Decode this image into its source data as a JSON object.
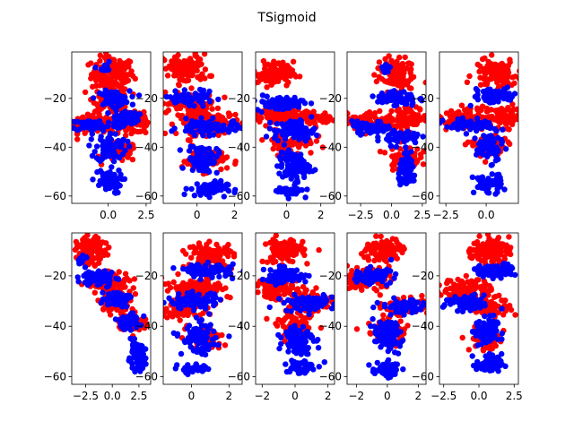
{
  "chart_data": {
    "type": "scatter",
    "title": "TSigmoid",
    "layout": "2x5 grid",
    "series_colors": [
      "#ff0000",
      "#0000ff"
    ],
    "panels": [
      {
        "xticks": [
          "0.0",
          "2.5"
        ],
        "xlim": [
          -2.4,
          2.8
        ],
        "yticks": [
          "-20",
          "-40",
          "-60"
        ],
        "ylim": [
          -63,
          -1
        ],
        "red_blobs": [
          [
            0.3,
            -10,
            1.4,
            7,
            130
          ],
          [
            -0.8,
            -30,
            2.4,
            4,
            150
          ],
          [
            1.5,
            -30,
            1.8,
            4,
            110
          ],
          [
            0.8,
            -42,
            1.1,
            4,
            60
          ],
          [
            0.2,
            -20,
            1.2,
            5,
            60
          ]
        ],
        "blue_blobs": [
          [
            0.3,
            -20,
            1.1,
            3,
            80
          ],
          [
            -0.9,
            -31,
            1.6,
            2.5,
            70
          ],
          [
            0.2,
            -40,
            1.0,
            6,
            70
          ],
          [
            -0.1,
            -54,
            1.0,
            5,
            60
          ],
          [
            1.2,
            -28,
            0.8,
            3,
            40
          ],
          [
            -0.3,
            -8,
            0.5,
            3,
            10
          ]
        ]
      },
      {
        "xticks": [
          "0",
          "2"
        ],
        "xlim": [
          -1.8,
          2.4
        ],
        "yticks": [
          "-20",
          "-40",
          "-60"
        ],
        "ylim": [
          -63,
          -1
        ],
        "red_blobs": [
          [
            -0.6,
            -8,
            1.2,
            6,
            110
          ],
          [
            -0.5,
            -22,
            1.5,
            4,
            90
          ],
          [
            0.7,
            -30,
            1.7,
            5,
            120
          ],
          [
            0.4,
            -45,
            1.2,
            5,
            60
          ]
        ],
        "blue_blobs": [
          [
            -0.4,
            -20,
            1.3,
            2.5,
            80
          ],
          [
            0.6,
            -32,
            1.6,
            3,
            90
          ],
          [
            0.3,
            -45,
            0.8,
            6,
            80
          ],
          [
            0.6,
            -57,
            1.0,
            3,
            60
          ]
        ]
      },
      {
        "xticks": [
          "0",
          "2"
        ],
        "xlim": [
          -1.8,
          2.8
        ],
        "yticks": [
          "-20",
          "-40",
          "-60"
        ],
        "ylim": [
          -63,
          -1
        ],
        "red_blobs": [
          [
            -0.8,
            -10,
            1.2,
            5,
            110
          ],
          [
            -0.3,
            -27,
            1.6,
            5,
            100
          ],
          [
            1.5,
            -28,
            1.4,
            3,
            90
          ],
          [
            0.2,
            -38,
            1.4,
            5,
            60
          ]
        ],
        "blue_blobs": [
          [
            -0.4,
            -22,
            1.4,
            3,
            80
          ],
          [
            0.5,
            -33,
            1.2,
            4,
            90
          ],
          [
            0.4,
            -48,
            0.9,
            6,
            90
          ],
          [
            0.2,
            -58,
            0.8,
            2,
            40
          ]
        ]
      },
      {
        "xticks": [
          "-2.5",
          "0.0",
          "2.5"
        ],
        "xlim": [
          -3.6,
          2.8
        ],
        "yticks": [
          "-20",
          "-40",
          "-60"
        ],
        "ylim": [
          -63,
          -1
        ],
        "red_blobs": [
          [
            0.3,
            -10,
            1.5,
            7,
            120
          ],
          [
            -1.6,
            -30,
            2.0,
            4,
            110
          ],
          [
            1.5,
            -28,
            1.5,
            4,
            90
          ],
          [
            1.0,
            -44,
            1.3,
            5,
            70
          ]
        ],
        "blue_blobs": [
          [
            0.4,
            -20,
            1.6,
            3,
            80
          ],
          [
            -1.6,
            -32,
            1.6,
            2.5,
            70
          ],
          [
            0.9,
            -36,
            1.4,
            3,
            60
          ],
          [
            1.3,
            -50,
            0.7,
            6,
            80
          ],
          [
            -0.4,
            -8,
            0.4,
            2,
            10
          ]
        ]
      },
      {
        "xticks": [
          "-2.5",
          "0.0"
        ],
        "xlim": [
          -2.9,
          2.0
        ],
        "yticks": [
          "-20",
          "-40",
          "-60"
        ],
        "ylim": [
          -63,
          -1
        ],
        "red_blobs": [
          [
            0.6,
            -10,
            1.3,
            6,
            110
          ],
          [
            -1.0,
            -28,
            2.0,
            4,
            110
          ],
          [
            1.1,
            -28,
            1.3,
            4,
            70
          ],
          [
            0.1,
            -40,
            1.2,
            5,
            60
          ]
        ],
        "blue_blobs": [
          [
            0.6,
            -19,
            1.4,
            3,
            80
          ],
          [
            -0.9,
            -31,
            1.6,
            2.5,
            70
          ],
          [
            0.2,
            -40,
            0.8,
            6,
            80
          ],
          [
            0.1,
            -55,
            0.9,
            4,
            60
          ]
        ]
      },
      {
        "xticks": [
          "-2.5",
          "0.0",
          "2.5"
        ],
        "xlim": [
          -3.8,
          3.6
        ],
        "yticks": [
          "-20",
          "-40",
          "-60"
        ],
        "ylim": [
          -63,
          -3
        ],
        "red_blobs": [
          [
            -2.0,
            -10,
            1.3,
            5,
            110
          ],
          [
            -0.3,
            -22,
            2.0,
            4,
            110
          ],
          [
            0.3,
            -30,
            1.5,
            4,
            80
          ],
          [
            1.8,
            -38,
            1.3,
            4,
            70
          ]
        ],
        "blue_blobs": [
          [
            -1.3,
            -21,
            1.6,
            3,
            80
          ],
          [
            0.3,
            -29,
            1.3,
            3,
            70
          ],
          [
            1.5,
            -38,
            1.2,
            3,
            70
          ],
          [
            2.3,
            -52,
            0.8,
            5,
            80
          ],
          [
            -2.8,
            -14,
            0.5,
            2,
            15
          ]
        ]
      },
      {
        "xticks": [
          "0",
          "2"
        ],
        "xlim": [
          -1.5,
          2.7
        ],
        "yticks": [
          "-20",
          "-40",
          "-60"
        ],
        "ylim": [
          -63,
          -3
        ],
        "red_blobs": [
          [
            1.0,
            -12,
            1.2,
            5,
            110
          ],
          [
            0.3,
            -25,
            1.8,
            4,
            100
          ],
          [
            -0.3,
            -33,
            1.5,
            4,
            90
          ],
          [
            0.7,
            -45,
            1.0,
            5,
            60
          ]
        ],
        "blue_blobs": [
          [
            1.0,
            -18,
            1.3,
            2.5,
            80
          ],
          [
            0.1,
            -30,
            1.4,
            3,
            80
          ],
          [
            0.4,
            -45,
            0.9,
            6,
            90
          ],
          [
            0.2,
            -57,
            0.9,
            2,
            40
          ]
        ]
      },
      {
        "xticks": [
          "-2",
          "0",
          "2"
        ],
        "xlim": [
          -2.4,
          2.4
        ],
        "yticks": [
          "-20",
          "-40",
          "-60"
        ],
        "ylim": [
          -63,
          -3
        ],
        "red_blobs": [
          [
            -0.7,
            -10,
            1.2,
            5,
            100
          ],
          [
            -1.0,
            -25,
            1.5,
            4,
            100
          ],
          [
            1.0,
            -30,
            1.4,
            4,
            90
          ],
          [
            0.1,
            -40,
            1.2,
            5,
            60
          ]
        ],
        "blue_blobs": [
          [
            -0.6,
            -20,
            1.4,
            3,
            80
          ],
          [
            0.8,
            -31,
            1.5,
            3,
            80
          ],
          [
            0.2,
            -45,
            0.9,
            6,
            90
          ],
          [
            0.3,
            -56,
            0.9,
            3,
            50
          ]
        ]
      },
      {
        "xticks": [
          "-2",
          "0",
          "2"
        ],
        "xlim": [
          -2.6,
          2.5
        ],
        "yticks": [
          "-20",
          "-40",
          "-60"
        ],
        "ylim": [
          -63,
          -3
        ],
        "red_blobs": [
          [
            -0.3,
            -10,
            1.3,
            5,
            100
          ],
          [
            -1.5,
            -22,
            1.4,
            4,
            100
          ],
          [
            1.2,
            -32,
            1.4,
            3,
            90
          ],
          [
            0.0,
            -42,
            1.3,
            5,
            70
          ]
        ],
        "blue_blobs": [
          [
            -1.0,
            -20,
            1.3,
            3,
            80
          ],
          [
            1.2,
            -32,
            1.5,
            2.5,
            90
          ],
          [
            0.0,
            -44,
            0.9,
            6,
            90
          ],
          [
            -0.1,
            -57,
            0.9,
            3,
            50
          ]
        ]
      },
      {
        "xticks": [
          "-2.5",
          "0.0",
          "2.5"
        ],
        "xlim": [
          -2.8,
          2.8
        ],
        "yticks": [
          "-20",
          "-40",
          "-60"
        ],
        "ylim": [
          -63,
          -3
        ],
        "red_blobs": [
          [
            0.8,
            -10,
            1.3,
            5,
            110
          ],
          [
            -0.8,
            -25,
            1.8,
            4,
            100
          ],
          [
            0.8,
            -32,
            1.5,
            4,
            80
          ],
          [
            0.6,
            -45,
            1.2,
            5,
            60
          ]
        ],
        "blue_blobs": [
          [
            1.2,
            -18,
            1.4,
            2.5,
            80
          ],
          [
            -0.8,
            -31,
            1.6,
            3,
            80
          ],
          [
            0.5,
            -42,
            0.8,
            6,
            80
          ],
          [
            0.7,
            -55,
            0.9,
            4,
            60
          ]
        ]
      }
    ]
  }
}
